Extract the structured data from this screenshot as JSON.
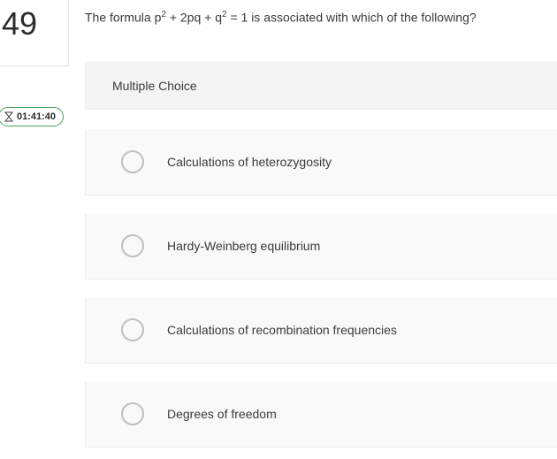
{
  "question_number": "49",
  "timer": "01:41:40",
  "question_html": "The formula p<sup>2</sup> + 2pq + q<sup>2</sup> = 1 is associated with which of the following?",
  "section_label": "Multiple Choice",
  "options": [
    "Calculations of heterozygosity",
    "Hardy-Weinberg equilibrium",
    "Calculations of recombination frequencies",
    "Degrees of freedom"
  ],
  "colors": {
    "timer_border": "#4a9d5f",
    "radio_border": "#bfbfbf",
    "panel_bg": "#f9f9f9",
    "header_bg": "#f4f4f4",
    "text": "#3a3a3a"
  }
}
